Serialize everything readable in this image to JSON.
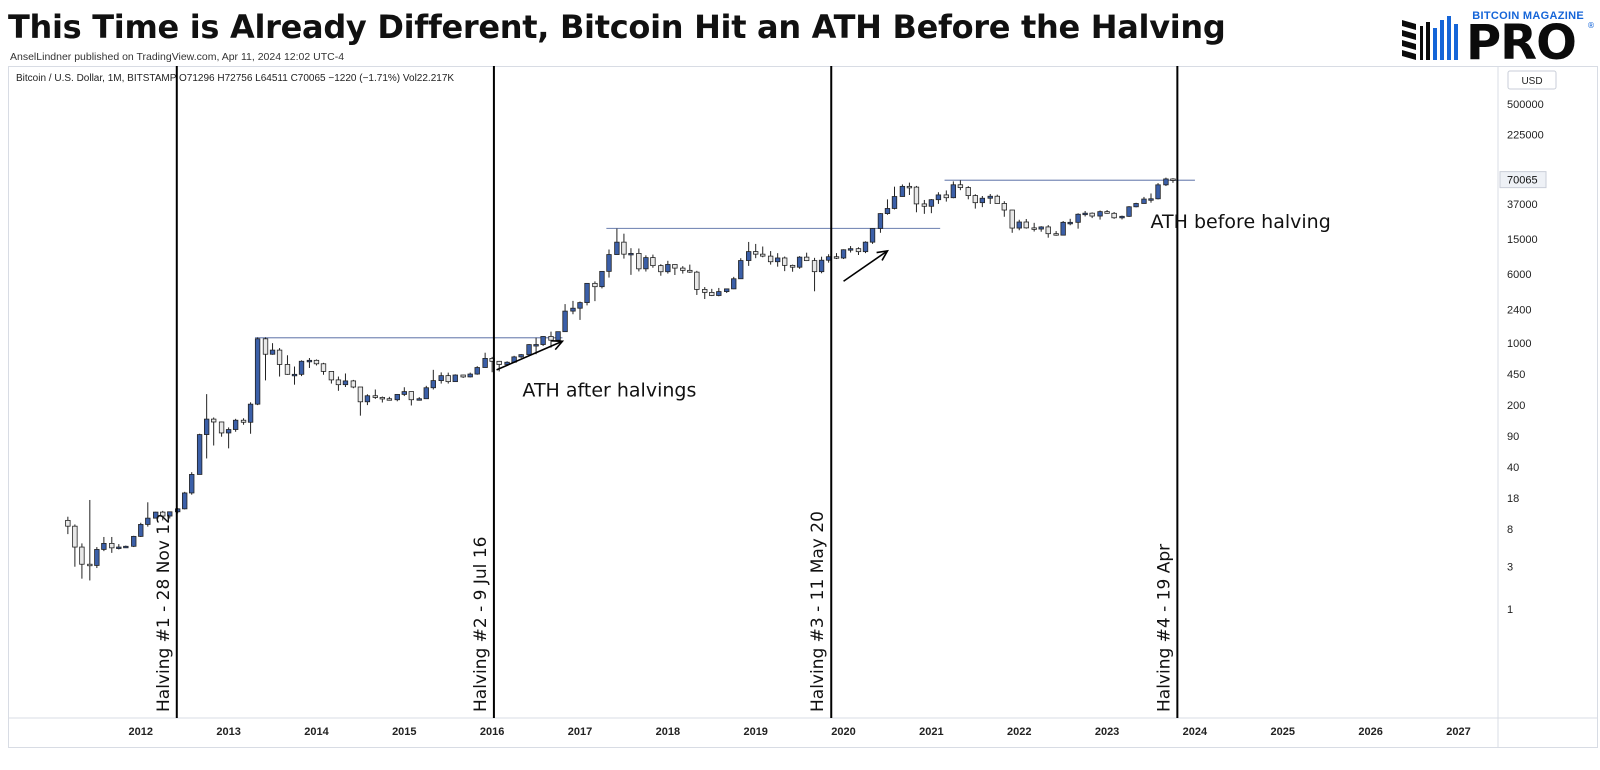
{
  "header": {
    "title": "This Time is Already Different, Bitcoin Hit an ATH Before the Halving",
    "byline": "AnselLindner published on TradingView.com, Apr 11, 2024 12:02 UTC-4"
  },
  "logo": {
    "top_text": "BITCOIN MAGAZINE",
    "main_text": "PRO",
    "registered": "®"
  },
  "legend_line": "Bitcoin / U.S. Dollar, 1M, BITSTAMP  O71296  H72756  L64511  C70065  −1220 (−1.71%)  Vol22.217K",
  "colors": {
    "up": "#3b5fa8",
    "down": "#e8e8e8",
    "ath_line": "#7b8db8",
    "last_price_bg": "#eef1f6"
  },
  "chart_data": {
    "type": "candlestick",
    "symbol": "Bitcoin / U.S. Dollar",
    "interval": "1M",
    "exchange": "BITSTAMP",
    "currency": "USD",
    "y_scale": "log",
    "y_ticks": [
      500000,
      225000,
      37000,
      15000,
      6000,
      2400,
      1000,
      450,
      200,
      90,
      40,
      18,
      8,
      3,
      1
    ],
    "last_price": 70065,
    "x_ticks": [
      "2012",
      "2013",
      "2014",
      "2015",
      "2016",
      "2017",
      "2018",
      "2019",
      "2020",
      "2021",
      "2022",
      "2023",
      "2024",
      "2025",
      "2026",
      "2027"
    ],
    "halvings": [
      {
        "label": "Halving #1 - 28 Nov 12",
        "date": 2012.91
      },
      {
        "label": "Halving #2 - 9 Jul 16",
        "date": 2016.52
      },
      {
        "label": "Halving #3 - 11 May 20",
        "date": 2020.36
      },
      {
        "label": "Halving #4 - 19 Apr",
        "date": 2024.3
      }
    ],
    "ath_lines": [
      {
        "start": 2013.8,
        "end": 2017.3,
        "price": 1150
      },
      {
        "start": 2017.8,
        "end": 2021.6,
        "price": 19700
      },
      {
        "start": 2021.65,
        "end": 2024.5,
        "price": 69000
      }
    ],
    "annotations": [
      {
        "text": "ATH after halvings",
        "date": 2017.3,
        "price": 250
      },
      {
        "text": "ATH before halving",
        "date": 2024.45,
        "price": 20000
      }
    ],
    "arrows": [
      {
        "from_date": 2016.55,
        "from_price": 500,
        "to_date": 2017.3,
        "to_price": 1050
      },
      {
        "from_date": 2020.5,
        "from_price": 5000,
        "to_date": 2021.0,
        "to_price": 11000
      }
    ],
    "candles": [
      {
        "t": 2011.67,
        "o": 10,
        "h": 11,
        "l": 7,
        "c": 8.6
      },
      {
        "t": 2011.75,
        "o": 8.6,
        "h": 9,
        "l": 3,
        "c": 5
      },
      {
        "t": 2011.83,
        "o": 5,
        "h": 5.5,
        "l": 2.2,
        "c": 3.2
      },
      {
        "t": 2011.92,
        "o": 3.2,
        "h": 17,
        "l": 2.1,
        "c": 3.1
      },
      {
        "t": 2012.0,
        "o": 3.1,
        "h": 5,
        "l": 2.9,
        "c": 4.7
      },
      {
        "t": 2012.08,
        "o": 4.7,
        "h": 6.5,
        "l": 4.5,
        "c": 5.5
      },
      {
        "t": 2012.17,
        "o": 5.5,
        "h": 6.5,
        "l": 4.3,
        "c": 4.9
      },
      {
        "t": 2012.25,
        "o": 4.9,
        "h": 5.4,
        "l": 4.7,
        "c": 5.0
      },
      {
        "t": 2012.33,
        "o": 5.0,
        "h": 5.2,
        "l": 4.9,
        "c": 5.1
      },
      {
        "t": 2012.42,
        "o": 5.1,
        "h": 6.7,
        "l": 5.0,
        "c": 6.6
      },
      {
        "t": 2012.5,
        "o": 6.6,
        "h": 9.4,
        "l": 6.5,
        "c": 9.0
      },
      {
        "t": 2012.58,
        "o": 9.0,
        "h": 16,
        "l": 8.5,
        "c": 10.6
      },
      {
        "t": 2012.67,
        "o": 10.6,
        "h": 12.5,
        "l": 10.5,
        "c": 12.4
      },
      {
        "t": 2012.75,
        "o": 12.4,
        "h": 12.8,
        "l": 10,
        "c": 11.2
      },
      {
        "t": 2012.83,
        "o": 11.2,
        "h": 12.5,
        "l": 10.5,
        "c": 12.5
      },
      {
        "t": 2012.92,
        "o": 12.5,
        "h": 13.8,
        "l": 12.0,
        "c": 13.5
      },
      {
        "t": 2013.0,
        "o": 13.5,
        "h": 21,
        "l": 13.3,
        "c": 20.4
      },
      {
        "t": 2013.08,
        "o": 20.4,
        "h": 35,
        "l": 19.5,
        "c": 33
      },
      {
        "t": 2013.17,
        "o": 33,
        "h": 95,
        "l": 33,
        "c": 93
      },
      {
        "t": 2013.25,
        "o": 93,
        "h": 266,
        "l": 50,
        "c": 139
      },
      {
        "t": 2013.33,
        "o": 139,
        "h": 145,
        "l": 70,
        "c": 129
      },
      {
        "t": 2013.42,
        "o": 129,
        "h": 130,
        "l": 88,
        "c": 97
      },
      {
        "t": 2013.5,
        "o": 97,
        "h": 112,
        "l": 65,
        "c": 106
      },
      {
        "t": 2013.58,
        "o": 106,
        "h": 140,
        "l": 100,
        "c": 135
      },
      {
        "t": 2013.67,
        "o": 135,
        "h": 142,
        "l": 120,
        "c": 128
      },
      {
        "t": 2013.75,
        "o": 128,
        "h": 215,
        "l": 95,
        "c": 205
      },
      {
        "t": 2013.83,
        "o": 205,
        "h": 1160,
        "l": 200,
        "c": 1120
      },
      {
        "t": 2013.92,
        "o": 1120,
        "h": 1160,
        "l": 380,
        "c": 750
      },
      {
        "t": 2014.0,
        "o": 750,
        "h": 1000,
        "l": 740,
        "c": 835
      },
      {
        "t": 2014.08,
        "o": 835,
        "h": 880,
        "l": 420,
        "c": 575
      },
      {
        "t": 2014.17,
        "o": 575,
        "h": 730,
        "l": 440,
        "c": 445
      },
      {
        "t": 2014.25,
        "o": 445,
        "h": 545,
        "l": 340,
        "c": 445
      },
      {
        "t": 2014.33,
        "o": 445,
        "h": 640,
        "l": 425,
        "c": 625
      },
      {
        "t": 2014.42,
        "o": 625,
        "h": 680,
        "l": 525,
        "c": 640
      },
      {
        "t": 2014.5,
        "o": 640,
        "h": 655,
        "l": 560,
        "c": 585
      },
      {
        "t": 2014.58,
        "o": 585,
        "h": 600,
        "l": 440,
        "c": 480
      },
      {
        "t": 2014.67,
        "o": 480,
        "h": 485,
        "l": 350,
        "c": 385
      },
      {
        "t": 2014.75,
        "o": 385,
        "h": 420,
        "l": 290,
        "c": 340
      },
      {
        "t": 2014.83,
        "o": 340,
        "h": 455,
        "l": 320,
        "c": 375
      },
      {
        "t": 2014.92,
        "o": 375,
        "h": 385,
        "l": 310,
        "c": 320
      },
      {
        "t": 2015.0,
        "o": 320,
        "h": 320,
        "l": 152,
        "c": 218
      },
      {
        "t": 2015.08,
        "o": 218,
        "h": 265,
        "l": 200,
        "c": 255
      },
      {
        "t": 2015.17,
        "o": 255,
        "h": 300,
        "l": 235,
        "c": 244
      },
      {
        "t": 2015.25,
        "o": 244,
        "h": 250,
        "l": 214,
        "c": 236
      },
      {
        "t": 2015.33,
        "o": 236,
        "h": 248,
        "l": 225,
        "c": 230
      },
      {
        "t": 2015.42,
        "o": 230,
        "h": 267,
        "l": 221,
        "c": 264
      },
      {
        "t": 2015.5,
        "o": 264,
        "h": 318,
        "l": 253,
        "c": 284
      },
      {
        "t": 2015.58,
        "o": 284,
        "h": 285,
        "l": 198,
        "c": 230
      },
      {
        "t": 2015.67,
        "o": 230,
        "h": 246,
        "l": 225,
        "c": 236
      },
      {
        "t": 2015.75,
        "o": 236,
        "h": 330,
        "l": 235,
        "c": 314
      },
      {
        "t": 2015.83,
        "o": 314,
        "h": 500,
        "l": 300,
        "c": 378
      },
      {
        "t": 2015.92,
        "o": 378,
        "h": 468,
        "l": 350,
        "c": 430
      },
      {
        "t": 2016.0,
        "o": 430,
        "h": 465,
        "l": 350,
        "c": 368
      },
      {
        "t": 2016.08,
        "o": 368,
        "h": 445,
        "l": 365,
        "c": 437
      },
      {
        "t": 2016.17,
        "o": 437,
        "h": 440,
        "l": 405,
        "c": 416
      },
      {
        "t": 2016.25,
        "o": 416,
        "h": 465,
        "l": 410,
        "c": 448
      },
      {
        "t": 2016.33,
        "o": 448,
        "h": 550,
        "l": 440,
        "c": 531
      },
      {
        "t": 2016.42,
        "o": 531,
        "h": 780,
        "l": 530,
        "c": 673
      },
      {
        "t": 2016.5,
        "o": 673,
        "h": 700,
        "l": 470,
        "c": 624
      },
      {
        "t": 2016.58,
        "o": 624,
        "h": 630,
        "l": 480,
        "c": 575
      },
      {
        "t": 2016.67,
        "o": 575,
        "h": 625,
        "l": 570,
        "c": 609
      },
      {
        "t": 2016.75,
        "o": 609,
        "h": 720,
        "l": 605,
        "c": 700
      },
      {
        "t": 2016.83,
        "o": 700,
        "h": 755,
        "l": 680,
        "c": 742
      },
      {
        "t": 2016.92,
        "o": 742,
        "h": 975,
        "l": 740,
        "c": 963
      },
      {
        "t": 2017.0,
        "o": 963,
        "h": 1150,
        "l": 750,
        "c": 965
      },
      {
        "t": 2017.08,
        "o": 965,
        "h": 1200,
        "l": 930,
        "c": 1190
      },
      {
        "t": 2017.17,
        "o": 1190,
        "h": 1350,
        "l": 890,
        "c": 1080
      },
      {
        "t": 2017.25,
        "o": 1080,
        "h": 1350,
        "l": 1060,
        "c": 1348
      },
      {
        "t": 2017.33,
        "o": 1348,
        "h": 2760,
        "l": 1345,
        "c": 2300
      },
      {
        "t": 2017.42,
        "o": 2300,
        "h": 3000,
        "l": 2120,
        "c": 2480
      },
      {
        "t": 2017.5,
        "o": 2480,
        "h": 2950,
        "l": 1830,
        "c": 2870
      },
      {
        "t": 2017.58,
        "o": 2870,
        "h": 4750,
        "l": 2670,
        "c": 4730
      },
      {
        "t": 2017.67,
        "o": 4730,
        "h": 4980,
        "l": 2980,
        "c": 4340
      },
      {
        "t": 2017.75,
        "o": 4340,
        "h": 6470,
        "l": 4150,
        "c": 6460
      },
      {
        "t": 2017.83,
        "o": 6460,
        "h": 11400,
        "l": 5500,
        "c": 10000
      },
      {
        "t": 2017.92,
        "o": 10000,
        "h": 19666,
        "l": 10000,
        "c": 13800
      },
      {
        "t": 2018.0,
        "o": 13800,
        "h": 17200,
        "l": 9000,
        "c": 10100
      },
      {
        "t": 2018.08,
        "o": 10100,
        "h": 11800,
        "l": 5900,
        "c": 10300
      },
      {
        "t": 2018.17,
        "o": 10300,
        "h": 11700,
        "l": 6450,
        "c": 6900
      },
      {
        "t": 2018.25,
        "o": 6900,
        "h": 9800,
        "l": 6430,
        "c": 9240
      },
      {
        "t": 2018.33,
        "o": 9240,
        "h": 9990,
        "l": 7100,
        "c": 7500
      },
      {
        "t": 2018.42,
        "o": 7500,
        "h": 7780,
        "l": 5770,
        "c": 6400
      },
      {
        "t": 2018.5,
        "o": 6400,
        "h": 8500,
        "l": 6100,
        "c": 7730
      },
      {
        "t": 2018.58,
        "o": 7730,
        "h": 7760,
        "l": 5880,
        "c": 7030
      },
      {
        "t": 2018.67,
        "o": 7030,
        "h": 7400,
        "l": 6100,
        "c": 6630
      },
      {
        "t": 2018.75,
        "o": 6630,
        "h": 7700,
        "l": 6200,
        "c": 6330
      },
      {
        "t": 2018.83,
        "o": 6330,
        "h": 6550,
        "l": 3500,
        "c": 4040
      },
      {
        "t": 2018.92,
        "o": 4040,
        "h": 4300,
        "l": 3150,
        "c": 3740
      },
      {
        "t": 2019.0,
        "o": 3740,
        "h": 4100,
        "l": 3400,
        "c": 3450
      },
      {
        "t": 2019.08,
        "o": 3450,
        "h": 4200,
        "l": 3380,
        "c": 3820
      },
      {
        "t": 2019.17,
        "o": 3820,
        "h": 4130,
        "l": 3680,
        "c": 4100
      },
      {
        "t": 2019.25,
        "o": 4100,
        "h": 5600,
        "l": 4070,
        "c": 5330
      },
      {
        "t": 2019.33,
        "o": 5330,
        "h": 9100,
        "l": 5320,
        "c": 8560
      },
      {
        "t": 2019.42,
        "o": 8560,
        "h": 13880,
        "l": 7450,
        "c": 10800
      },
      {
        "t": 2019.5,
        "o": 10800,
        "h": 13180,
        "l": 9100,
        "c": 10100
      },
      {
        "t": 2019.58,
        "o": 10100,
        "h": 12320,
        "l": 9320,
        "c": 9600
      },
      {
        "t": 2019.67,
        "o": 9600,
        "h": 10950,
        "l": 7700,
        "c": 8300
      },
      {
        "t": 2019.75,
        "o": 8300,
        "h": 10370,
        "l": 7300,
        "c": 9150
      },
      {
        "t": 2019.83,
        "o": 9150,
        "h": 9500,
        "l": 6500,
        "c": 7550
      },
      {
        "t": 2019.92,
        "o": 7550,
        "h": 7700,
        "l": 6400,
        "c": 7200
      },
      {
        "t": 2020.0,
        "o": 7200,
        "h": 9600,
        "l": 6900,
        "c": 9350
      },
      {
        "t": 2020.08,
        "o": 9350,
        "h": 10500,
        "l": 8450,
        "c": 8540
      },
      {
        "t": 2020.17,
        "o": 8540,
        "h": 9180,
        "l": 3850,
        "c": 6410
      },
      {
        "t": 2020.25,
        "o": 6410,
        "h": 9460,
        "l": 6150,
        "c": 8630
      },
      {
        "t": 2020.33,
        "o": 8630,
        "h": 10080,
        "l": 8100,
        "c": 9450
      },
      {
        "t": 2020.42,
        "o": 9450,
        "h": 10380,
        "l": 8900,
        "c": 9140
      },
      {
        "t": 2020.5,
        "o": 9140,
        "h": 11450,
        "l": 8900,
        "c": 11330
      },
      {
        "t": 2020.58,
        "o": 11330,
        "h": 12470,
        "l": 10550,
        "c": 11650
      },
      {
        "t": 2020.67,
        "o": 11650,
        "h": 12080,
        "l": 9880,
        "c": 10780
      },
      {
        "t": 2020.75,
        "o": 10780,
        "h": 14100,
        "l": 10380,
        "c": 13800
      },
      {
        "t": 2020.83,
        "o": 13800,
        "h": 19880,
        "l": 13200,
        "c": 19700
      },
      {
        "t": 2020.92,
        "o": 19700,
        "h": 29300,
        "l": 17600,
        "c": 28990
      },
      {
        "t": 2021.0,
        "o": 28990,
        "h": 41950,
        "l": 28130,
        "c": 33100
      },
      {
        "t": 2021.08,
        "o": 33100,
        "h": 58350,
        "l": 32300,
        "c": 45200
      },
      {
        "t": 2021.17,
        "o": 45200,
        "h": 61800,
        "l": 45000,
        "c": 58800
      },
      {
        "t": 2021.25,
        "o": 58800,
        "h": 64800,
        "l": 47000,
        "c": 57700
      },
      {
        "t": 2021.33,
        "o": 57700,
        "h": 59500,
        "l": 30000,
        "c": 37300
      },
      {
        "t": 2021.42,
        "o": 37300,
        "h": 41300,
        "l": 28800,
        "c": 35050
      },
      {
        "t": 2021.5,
        "o": 35050,
        "h": 42300,
        "l": 29300,
        "c": 41600
      },
      {
        "t": 2021.58,
        "o": 41600,
        "h": 50500,
        "l": 37300,
        "c": 47100
      },
      {
        "t": 2021.67,
        "o": 47100,
        "h": 52900,
        "l": 39600,
        "c": 43800
      },
      {
        "t": 2021.75,
        "o": 43800,
        "h": 66900,
        "l": 43200,
        "c": 61300
      },
      {
        "t": 2021.83,
        "o": 61300,
        "h": 69000,
        "l": 53300,
        "c": 57000
      },
      {
        "t": 2021.92,
        "o": 57000,
        "h": 59100,
        "l": 42000,
        "c": 46300
      },
      {
        "t": 2022.0,
        "o": 46300,
        "h": 47900,
        "l": 33000,
        "c": 38500
      },
      {
        "t": 2022.08,
        "o": 38500,
        "h": 45800,
        "l": 34300,
        "c": 43200
      },
      {
        "t": 2022.17,
        "o": 43200,
        "h": 48200,
        "l": 37200,
        "c": 45500
      },
      {
        "t": 2022.25,
        "o": 45500,
        "h": 47400,
        "l": 37600,
        "c": 37700
      },
      {
        "t": 2022.33,
        "o": 37700,
        "h": 40000,
        "l": 26700,
        "c": 31800
      },
      {
        "t": 2022.42,
        "o": 31800,
        "h": 31900,
        "l": 17600,
        "c": 19900
      },
      {
        "t": 2022.5,
        "o": 19900,
        "h": 24700,
        "l": 18800,
        "c": 23300
      },
      {
        "t": 2022.58,
        "o": 23300,
        "h": 25200,
        "l": 19600,
        "c": 20000
      },
      {
        "t": 2022.67,
        "o": 20000,
        "h": 22800,
        "l": 18200,
        "c": 19400
      },
      {
        "t": 2022.75,
        "o": 19400,
        "h": 20900,
        "l": 18100,
        "c": 20500
      },
      {
        "t": 2022.83,
        "o": 20500,
        "h": 21500,
        "l": 15500,
        "c": 17200
      },
      {
        "t": 2022.92,
        "o": 17200,
        "h": 18400,
        "l": 16300,
        "c": 16550
      },
      {
        "t": 2023.0,
        "o": 16550,
        "h": 23900,
        "l": 16500,
        "c": 23100
      },
      {
        "t": 2023.08,
        "o": 23100,
        "h": 25300,
        "l": 21400,
        "c": 23100
      },
      {
        "t": 2023.17,
        "o": 23100,
        "h": 29200,
        "l": 19600,
        "c": 28500
      },
      {
        "t": 2023.25,
        "o": 28500,
        "h": 31000,
        "l": 26900,
        "c": 29300
      },
      {
        "t": 2023.33,
        "o": 29300,
        "h": 29900,
        "l": 25800,
        "c": 27200
      },
      {
        "t": 2023.42,
        "o": 27200,
        "h": 31400,
        "l": 24800,
        "c": 30500
      },
      {
        "t": 2023.5,
        "o": 30500,
        "h": 31800,
        "l": 28900,
        "c": 29200
      },
      {
        "t": 2023.58,
        "o": 29200,
        "h": 30200,
        "l": 25300,
        "c": 26000
      },
      {
        "t": 2023.67,
        "o": 26000,
        "h": 27500,
        "l": 24900,
        "c": 27000
      },
      {
        "t": 2023.75,
        "o": 27000,
        "h": 35200,
        "l": 26600,
        "c": 34600
      },
      {
        "t": 2023.83,
        "o": 34600,
        "h": 38400,
        "l": 34100,
        "c": 37700
      },
      {
        "t": 2023.92,
        "o": 37700,
        "h": 44700,
        "l": 37600,
        "c": 42300
      },
      {
        "t": 2024.0,
        "o": 42300,
        "h": 48900,
        "l": 38500,
        "c": 42600
      },
      {
        "t": 2024.08,
        "o": 42600,
        "h": 64000,
        "l": 41900,
        "c": 61200
      },
      {
        "t": 2024.17,
        "o": 61200,
        "h": 73800,
        "l": 59300,
        "c": 71300
      },
      {
        "t": 2024.25,
        "o": 71300,
        "h": 72756,
        "l": 64511,
        "c": 70065
      }
    ]
  }
}
